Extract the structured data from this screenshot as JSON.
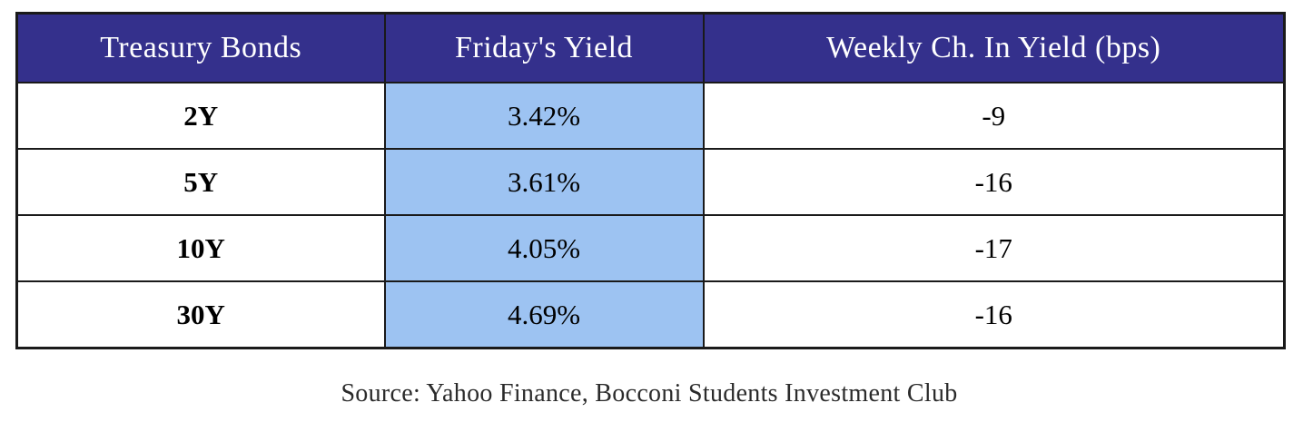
{
  "table": {
    "columns": [
      "Treasury Bonds",
      "Friday's Yield",
      "Weekly Ch. In Yield (bps)"
    ],
    "rows": [
      {
        "bond": "2Y",
        "yield": "3.42%",
        "weekly_change": "-9"
      },
      {
        "bond": "5Y",
        "yield": "3.61%",
        "weekly_change": "-16"
      },
      {
        "bond": "10Y",
        "yield": "4.05%",
        "weekly_change": "-17"
      },
      {
        "bond": "30Y",
        "yield": "4.69%",
        "weekly_change": "-16"
      }
    ]
  },
  "source": "Source: Yahoo Finance, Bocconi Students Investment Club",
  "colors": {
    "header_bg": "#34308c",
    "header_text": "#ffffff",
    "yield_column_bg": "#9dc3f2",
    "border": "#1a1a1a"
  },
  "chart_data": {
    "type": "table",
    "title": "",
    "columns": [
      "Treasury Bonds",
      "Friday's Yield",
      "Weekly Ch. In Yield (bps)"
    ],
    "rows": [
      [
        "2Y",
        "3.42%",
        -9
      ],
      [
        "5Y",
        "3.61%",
        -16
      ],
      [
        "10Y",
        "4.05%",
        -17
      ],
      [
        "30Y",
        "4.69%",
        -16
      ]
    ],
    "source": "Source: Yahoo Finance, Bocconi Students Investment Club"
  }
}
